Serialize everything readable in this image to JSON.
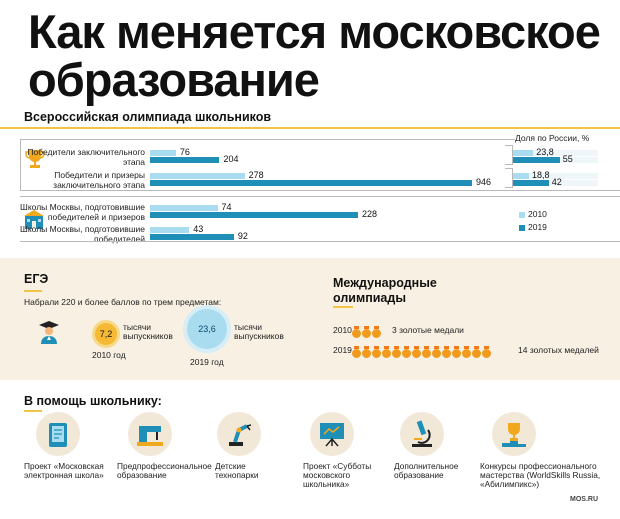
{
  "title": "Как меняется московское образование",
  "olympiad": {
    "heading": "Всероссийская олимпиада школьников",
    "share_label": "Доля по России, %",
    "rows": [
      {
        "label": "Победители заключительного этапа",
        "v2010": "76",
        "v2019": "204",
        "s2010": "23,8",
        "s2019": "55"
      },
      {
        "label": "Победители и призеры заключительного этапа",
        "v2010": "278",
        "v2019": "946",
        "s2010": "18,8",
        "s2019": "42"
      },
      {
        "label": "Школы Москвы, подготовившие победителей и призеров",
        "v2010": "74",
        "v2019": "228"
      },
      {
        "label": "Школы Москвы, подготовившие победителей",
        "v2010": "43",
        "v2019": "92"
      }
    ],
    "legend": [
      "2010",
      "2019"
    ]
  },
  "chart_data": {
    "type": "bar",
    "title": "Всероссийская олимпиада школьников",
    "categories": [
      "Победители заключительного этапа",
      "Победители и призеры заключительного этапа",
      "Школы Москвы, подготовившие победителей и призеров",
      "Школы Москвы, подготовившие победителей"
    ],
    "series": [
      {
        "name": "2010",
        "values": [
          76,
          278,
          74,
          43
        ]
      },
      {
        "name": "2019",
        "values": [
          204,
          946,
          228,
          92
        ]
      }
    ],
    "share_series": [
      {
        "name": "2010",
        "values": [
          23.8,
          18.8
        ]
      },
      {
        "name": "2019",
        "values": [
          55,
          42
        ]
      }
    ],
    "colors": {
      "2010": "#a9dcef",
      "2019": "#1f8fb8"
    }
  },
  "ege": {
    "heading": "ЕГЭ",
    "subtitle": "Набрали 220 и более баллов по трем предметам:",
    "v2010": "7,2",
    "v2019": "23,6",
    "unit": "тысячи выпускников",
    "y2010": "2010 год",
    "y2019": "2019 год"
  },
  "international": {
    "heading": "Международные олимпиады",
    "rows": [
      {
        "year": "2010",
        "medals": 3,
        "text": "3 золотые медали"
      },
      {
        "year": "2019",
        "medals": 14,
        "text": "14 золотых медалей"
      }
    ]
  },
  "help": {
    "heading": "В помощь школьнику:",
    "items": [
      {
        "label": "Проект «Московская электронная школа»",
        "icon": "tablet-icon"
      },
      {
        "label": "Предпрофессиональное образование",
        "icon": "sewing-machine-icon"
      },
      {
        "label": "Детские технопарки",
        "icon": "robot-arm-icon"
      },
      {
        "label": "Проект «Субботы московского школьника»",
        "icon": "presentation-board-icon"
      },
      {
        "label": "Дополнительное образование",
        "icon": "microscope-icon"
      },
      {
        "label": "Конкурсы профессионального мастерства (WorldSkills Russia, «Абилимпикс»)",
        "icon": "trophy-icon"
      }
    ]
  },
  "footer": "MOS.RU"
}
